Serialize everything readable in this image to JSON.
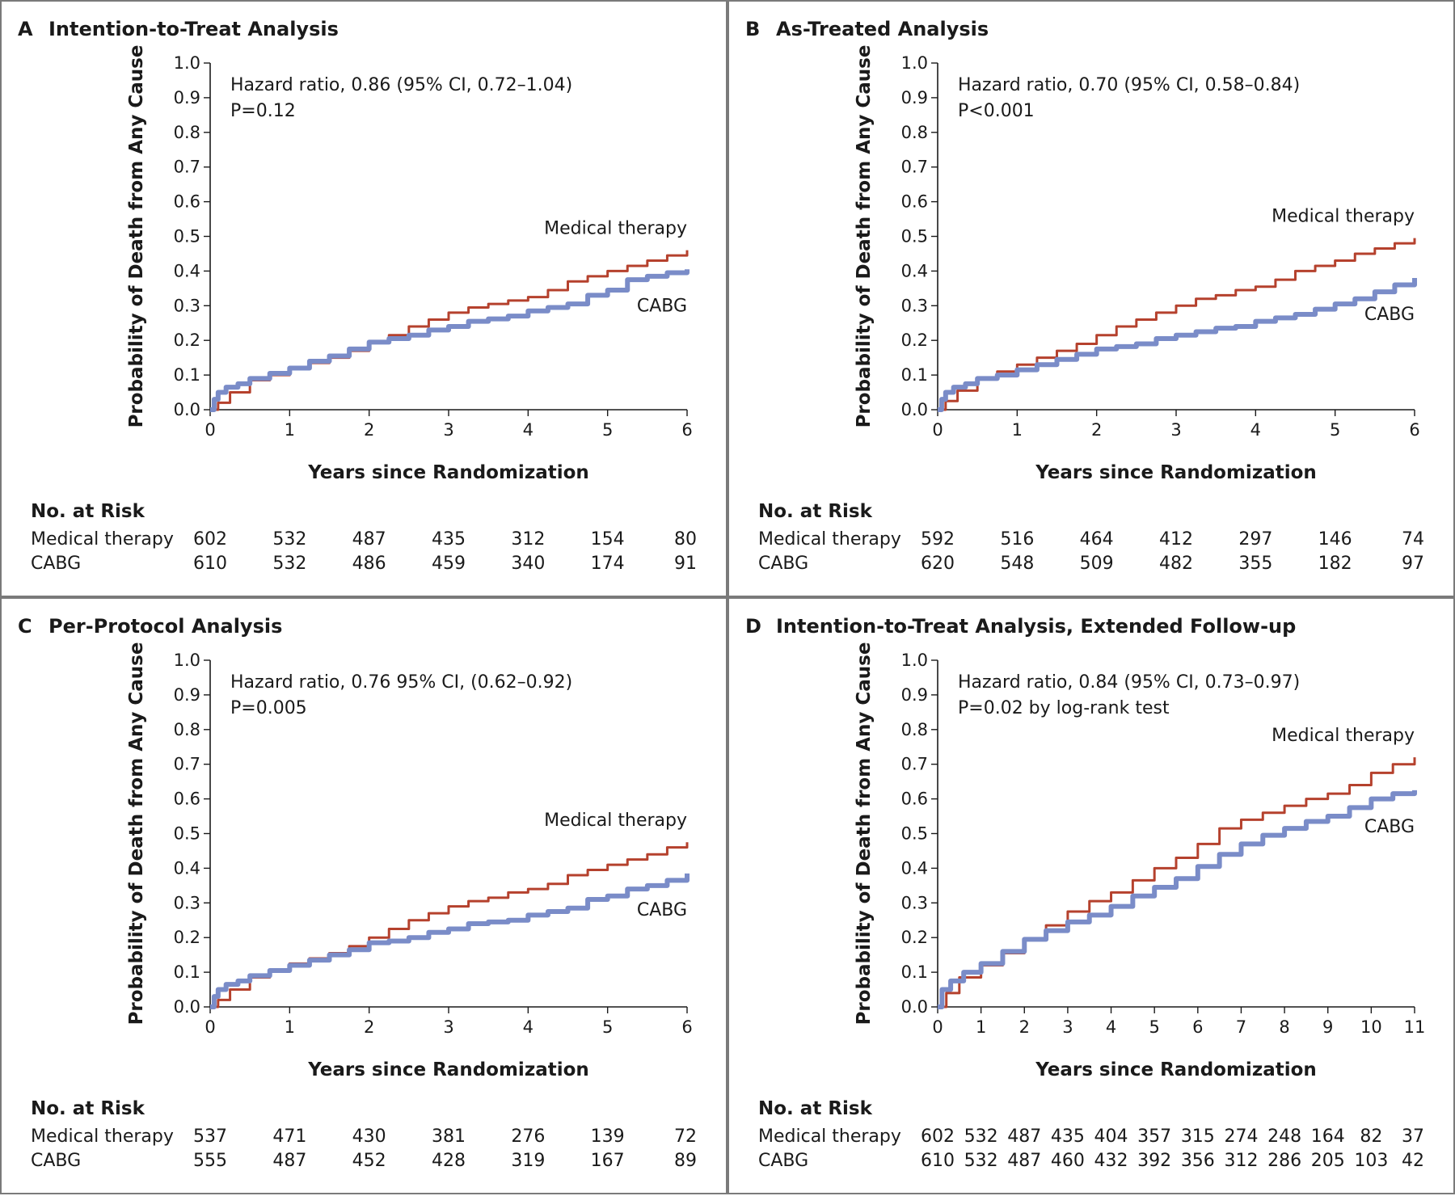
{
  "panels": [
    {
      "letter": "A",
      "title": "Intention-to-Treat Analysis",
      "annotation": [
        "Hazard ratio, 0.86 (95% CI, 0.72–1.04)",
        "P=0.12"
      ],
      "chart_data": {
        "type": "line",
        "xlabel": "Years since Randomization",
        "ylabel": "Probability of Death from Any Cause",
        "xlim": [
          0,
          6
        ],
        "ylim": [
          0,
          1
        ],
        "xticks": [
          "0",
          "1",
          "2",
          "3",
          "4",
          "5",
          "6"
        ],
        "yticks": [
          "0.0",
          "0.1",
          "0.2",
          "0.3",
          "0.4",
          "0.5",
          "0.6",
          "0.7",
          "0.8",
          "0.9",
          "1.0"
        ],
        "series": [
          {
            "name": "Medical therapy",
            "x": [
              0,
              0.1,
              0.25,
              0.5,
              0.75,
              1,
              1.25,
              1.5,
              1.75,
              2,
              2.25,
              2.5,
              2.75,
              3,
              3.25,
              3.5,
              3.75,
              4,
              4.25,
              4.5,
              4.75,
              5,
              5.25,
              5.5,
              5.75,
              6
            ],
            "y": [
              0,
              0.02,
              0.05,
              0.085,
              0.1,
              0.12,
              0.135,
              0.15,
              0.17,
              0.195,
              0.215,
              0.24,
              0.26,
              0.28,
              0.295,
              0.305,
              0.315,
              0.325,
              0.345,
              0.37,
              0.385,
              0.4,
              0.415,
              0.43,
              0.445,
              0.46
            ]
          },
          {
            "name": "CABG",
            "x": [
              0,
              0.05,
              0.1,
              0.2,
              0.35,
              0.5,
              0.75,
              1,
              1.25,
              1.5,
              1.75,
              2,
              2.25,
              2.5,
              2.75,
              3,
              3.25,
              3.5,
              3.75,
              4,
              4.25,
              4.5,
              4.75,
              5,
              5.25,
              5.5,
              5.75,
              6
            ],
            "y": [
              0,
              0.03,
              0.05,
              0.065,
              0.075,
              0.09,
              0.105,
              0.12,
              0.14,
              0.155,
              0.175,
              0.195,
              0.205,
              0.215,
              0.23,
              0.24,
              0.255,
              0.262,
              0.27,
              0.285,
              0.295,
              0.305,
              0.33,
              0.345,
              0.375,
              0.385,
              0.395,
              0.405
            ]
          }
        ]
      },
      "risk": {
        "header": "No. at Risk",
        "rows": [
          {
            "label": "Medical therapy",
            "values": [
              "602",
              "532",
              "487",
              "435",
              "312",
              "154",
              "80"
            ]
          },
          {
            "label": "CABG",
            "values": [
              "610",
              "532",
              "486",
              "459",
              "340",
              "174",
              "91"
            ]
          }
        ]
      }
    },
    {
      "letter": "B",
      "title": "As-Treated Analysis",
      "annotation": [
        "Hazard ratio, 0.70 (95% CI, 0.58–0.84)",
        "P<0.001"
      ],
      "chart_data": {
        "type": "line",
        "xlabel": "Years since Randomization",
        "ylabel": "Probability of Death from Any Cause",
        "xlim": [
          0,
          6
        ],
        "ylim": [
          0,
          1
        ],
        "xticks": [
          "0",
          "1",
          "2",
          "3",
          "4",
          "5",
          "6"
        ],
        "yticks": [
          "0.0",
          "0.1",
          "0.2",
          "0.3",
          "0.4",
          "0.5",
          "0.6",
          "0.7",
          "0.8",
          "0.9",
          "1.0"
        ],
        "series": [
          {
            "name": "Medical therapy",
            "x": [
              0,
              0.1,
              0.25,
              0.5,
              0.75,
              1,
              1.25,
              1.5,
              1.75,
              2,
              2.25,
              2.5,
              2.75,
              3,
              3.25,
              3.5,
              3.75,
              4,
              4.25,
              4.5,
              4.75,
              5,
              5.25,
              5.5,
              5.75,
              6
            ],
            "y": [
              0,
              0.025,
              0.055,
              0.09,
              0.11,
              0.13,
              0.15,
              0.17,
              0.19,
              0.215,
              0.24,
              0.26,
              0.28,
              0.3,
              0.32,
              0.33,
              0.345,
              0.355,
              0.375,
              0.4,
              0.415,
              0.43,
              0.45,
              0.465,
              0.48,
              0.495
            ]
          },
          {
            "name": "CABG",
            "x": [
              0,
              0.05,
              0.1,
              0.2,
              0.35,
              0.5,
              0.75,
              1,
              1.25,
              1.5,
              1.75,
              2,
              2.25,
              2.5,
              2.75,
              3,
              3.25,
              3.5,
              3.75,
              4,
              4.25,
              4.5,
              4.75,
              5,
              5.25,
              5.5,
              5.75,
              6
            ],
            "y": [
              0,
              0.03,
              0.05,
              0.065,
              0.075,
              0.09,
              0.1,
              0.115,
              0.13,
              0.145,
              0.16,
              0.175,
              0.182,
              0.19,
              0.205,
              0.215,
              0.225,
              0.235,
              0.24,
              0.255,
              0.265,
              0.275,
              0.29,
              0.305,
              0.32,
              0.34,
              0.36,
              0.38
            ]
          }
        ]
      },
      "risk": {
        "header": "No. at Risk",
        "rows": [
          {
            "label": "Medical therapy",
            "values": [
              "592",
              "516",
              "464",
              "412",
              "297",
              "146",
              "74"
            ]
          },
          {
            "label": "CABG",
            "values": [
              "620",
              "548",
              "509",
              "482",
              "355",
              "182",
              "97"
            ]
          }
        ]
      }
    },
    {
      "letter": "C",
      "title": "Per-Protocol Analysis",
      "annotation": [
        "Hazard ratio, 0.76 95% CI, (0.62–0.92)",
        "P=0.005"
      ],
      "chart_data": {
        "type": "line",
        "xlabel": "Years since Randomization",
        "ylabel": "Probability of Death from Any Cause",
        "xlim": [
          0,
          6
        ],
        "ylim": [
          0,
          1
        ],
        "xticks": [
          "0",
          "1",
          "2",
          "3",
          "4",
          "5",
          "6"
        ],
        "yticks": [
          "0.0",
          "0.1",
          "0.2",
          "0.3",
          "0.4",
          "0.5",
          "0.6",
          "0.7",
          "0.8",
          "0.9",
          "1.0"
        ],
        "series": [
          {
            "name": "Medical therapy",
            "x": [
              0,
              0.1,
              0.25,
              0.5,
              0.75,
              1,
              1.25,
              1.5,
              1.75,
              2,
              2.25,
              2.5,
              2.75,
              3,
              3.25,
              3.5,
              3.75,
              4,
              4.25,
              4.5,
              4.75,
              5,
              5.25,
              5.5,
              5.75,
              6
            ],
            "y": [
              0,
              0.02,
              0.05,
              0.085,
              0.105,
              0.125,
              0.14,
              0.155,
              0.175,
              0.2,
              0.225,
              0.25,
              0.27,
              0.29,
              0.305,
              0.315,
              0.33,
              0.34,
              0.355,
              0.38,
              0.395,
              0.41,
              0.425,
              0.44,
              0.46,
              0.475
            ]
          },
          {
            "name": "CABG",
            "x": [
              0,
              0.05,
              0.1,
              0.2,
              0.35,
              0.5,
              0.75,
              1,
              1.25,
              1.5,
              1.75,
              2,
              2.25,
              2.5,
              2.75,
              3,
              3.25,
              3.5,
              3.75,
              4,
              4.25,
              4.5,
              4.75,
              5,
              5.25,
              5.5,
              5.75,
              6
            ],
            "y": [
              0,
              0.03,
              0.05,
              0.065,
              0.075,
              0.09,
              0.105,
              0.12,
              0.135,
              0.15,
              0.165,
              0.185,
              0.19,
              0.2,
              0.215,
              0.225,
              0.24,
              0.245,
              0.25,
              0.265,
              0.275,
              0.285,
              0.31,
              0.32,
              0.34,
              0.35,
              0.365,
              0.385
            ]
          }
        ]
      },
      "risk": {
        "header": "No. at Risk",
        "rows": [
          {
            "label": "Medical therapy",
            "values": [
              "537",
              "471",
              "430",
              "381",
              "276",
              "139",
              "72"
            ]
          },
          {
            "label": "CABG",
            "values": [
              "555",
              "487",
              "452",
              "428",
              "319",
              "167",
              "89"
            ]
          }
        ]
      }
    },
    {
      "letter": "D",
      "title": "Intention-to-Treat Analysis, Extended Follow-up",
      "annotation": [
        "Hazard ratio, 0.84 (95% CI, 0.73–0.97)",
        "P=0.02 by log-rank test"
      ],
      "chart_data": {
        "type": "line",
        "xlabel": "Years since Randomization",
        "ylabel": "Probability of Death from Any Cause",
        "xlim": [
          0,
          11
        ],
        "ylim": [
          0,
          1
        ],
        "xticks": [
          "0",
          "1",
          "2",
          "3",
          "4",
          "5",
          "6",
          "7",
          "8",
          "9",
          "10",
          "11"
        ],
        "yticks": [
          "0.0",
          "0.1",
          "0.2",
          "0.3",
          "0.4",
          "0.5",
          "0.6",
          "0.7",
          "0.8",
          "0.9",
          "1.0"
        ],
        "series": [
          {
            "name": "Medical therapy",
            "x": [
              0,
              0.2,
              0.5,
              1,
              1.5,
              2,
              2.5,
              3,
              3.5,
              4,
              4.5,
              5,
              5.5,
              6,
              6.5,
              7,
              7.5,
              8,
              8.5,
              9,
              9.5,
              10,
              10.5,
              11
            ],
            "y": [
              0,
              0.04,
              0.085,
              0.12,
              0.155,
              0.195,
              0.235,
              0.275,
              0.305,
              0.33,
              0.365,
              0.4,
              0.43,
              0.47,
              0.515,
              0.54,
              0.56,
              0.58,
              0.6,
              0.615,
              0.64,
              0.675,
              0.7,
              0.72
            ]
          },
          {
            "name": "CABG",
            "x": [
              0,
              0.1,
              0.3,
              0.6,
              1,
              1.5,
              2,
              2.5,
              3,
              3.5,
              4,
              4.5,
              5,
              5.5,
              6,
              6.5,
              7,
              7.5,
              8,
              8.5,
              9,
              9.5,
              10,
              10.5,
              11
            ],
            "y": [
              0,
              0.05,
              0.075,
              0.1,
              0.125,
              0.16,
              0.195,
              0.22,
              0.245,
              0.265,
              0.29,
              0.32,
              0.345,
              0.37,
              0.405,
              0.44,
              0.47,
              0.495,
              0.515,
              0.535,
              0.55,
              0.575,
              0.6,
              0.615,
              0.625
            ]
          }
        ]
      },
      "risk": {
        "header": "No. at Risk",
        "rows": [
          {
            "label": "Medical therapy",
            "values": [
              "602",
              "532",
              "487",
              "435",
              "404",
              "357",
              "315",
              "274",
              "248",
              "164",
              "82",
              "37"
            ]
          },
          {
            "label": "CABG",
            "values": [
              "610",
              "532",
              "487",
              "460",
              "432",
              "392",
              "356",
              "312",
              "286",
              "205",
              "103",
              "42"
            ]
          }
        ]
      }
    }
  ],
  "colors": {
    "medical_therapy": "#b5412d",
    "cabg": "#7a8cc8",
    "axis": "#1a1a1a",
    "border": "#7a7a7a"
  }
}
